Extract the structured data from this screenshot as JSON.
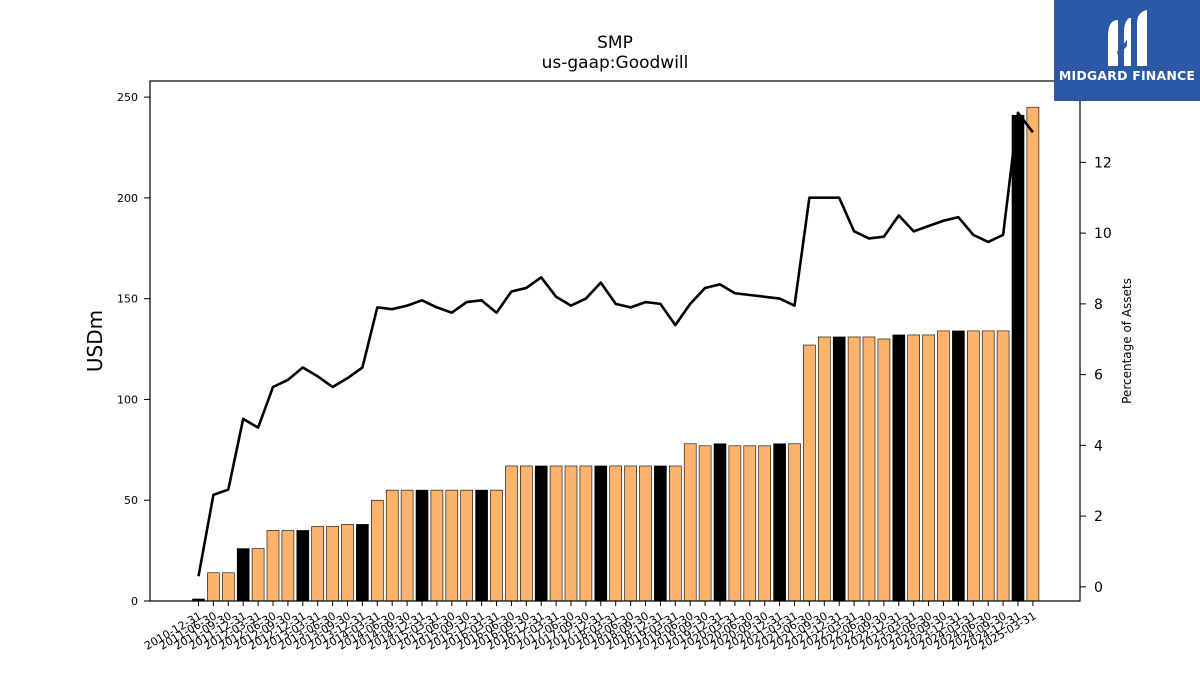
{
  "title": "SMP",
  "subtitle": "us-gaap:Goodwill",
  "logo": {
    "text": "MIDGARD FINANCE",
    "icon": "midgard-m-logo-icon"
  },
  "colors": {
    "bar": "#fdb36b",
    "bar_year_end": "#000000",
    "line": "#000000",
    "logo_bg": "#2b59a8"
  },
  "chart_data": {
    "type": "bar",
    "title": "SMP",
    "subtitle": "us-gaap:Goodwill",
    "ylabel": "USDm",
    "y2label": "Percentage of Assets",
    "ylim": [
      0,
      258
    ],
    "y2lim": [
      -0.4,
      14.3
    ],
    "yticks": [
      0,
      50,
      100,
      150,
      200,
      250
    ],
    "y2ticks": [
      0,
      2,
      4,
      6,
      8,
      10,
      12
    ],
    "categories": [
      "2010-12-31",
      "2011-06-30",
      "2011-09-30",
      "2011-12-31",
      "2012-03-31",
      "2012-06-30",
      "2012-09-30",
      "2012-12-31",
      "2013-03-31",
      "2013-06-30",
      "2013-09-30",
      "2013-12-31",
      "2014-03-31",
      "2014-06-30",
      "2014-09-30",
      "2014-12-31",
      "2015-03-31",
      "2015-06-30",
      "2015-09-30",
      "2015-12-31",
      "2016-03-31",
      "2016-06-30",
      "2016-09-30",
      "2016-12-31",
      "2017-03-31",
      "2017-06-30",
      "2017-09-30",
      "2017-12-31",
      "2018-03-31",
      "2018-06-30",
      "2018-09-30",
      "2018-12-31",
      "2019-03-31",
      "2019-06-30",
      "2019-09-30",
      "2019-12-31",
      "2020-03-31",
      "2020-06-30",
      "2020-09-30",
      "2020-12-31",
      "2021-03-31",
      "2021-06-30",
      "2021-09-30",
      "2021-12-31",
      "2022-03-31",
      "2022-06-30",
      "2022-09-30",
      "2022-12-31",
      "2023-03-31",
      "2023-06-30",
      "2023-09-30",
      "2023-12-31",
      "2024-03-31",
      "2024-06-30",
      "2024-09-30",
      "2024-12-31",
      "2025-03-31"
    ],
    "series": [
      {
        "type": "bar",
        "axis": "left",
        "values": [
          1,
          14,
          14,
          26,
          26,
          35,
          35,
          35,
          37,
          37,
          38,
          38,
          50,
          55,
          55,
          55,
          55,
          55,
          55,
          55,
          55,
          67,
          67,
          67,
          67,
          67,
          67,
          67,
          67,
          67,
          67,
          67,
          67,
          78,
          77,
          78,
          77,
          77,
          77,
          78,
          78,
          127,
          131,
          131,
          131,
          131,
          130,
          132,
          132,
          132,
          134,
          134,
          134,
          134,
          134,
          241,
          245
        ]
      },
      {
        "type": "line",
        "axis": "right",
        "values": [
          0.3,
          2.6,
          2.75,
          4.75,
          4.5,
          5.65,
          5.85,
          6.2,
          5.95,
          5.65,
          5.9,
          6.2,
          7.9,
          7.85,
          7.95,
          8.1,
          7.9,
          7.75,
          8.05,
          8.1,
          7.75,
          8.35,
          8.45,
          8.75,
          8.2,
          7.95,
          8.15,
          8.6,
          8.0,
          7.9,
          8.05,
          8.0,
          7.4,
          8.0,
          8.45,
          8.55,
          8.3,
          8.25,
          8.2,
          8.15,
          7.95,
          11.0,
          11.0,
          11.0,
          10.05,
          9.85,
          9.9,
          10.5,
          10.05,
          10.2,
          10.35,
          10.45,
          9.95,
          9.75,
          9.95,
          13.4,
          12.85
        ]
      }
    ]
  }
}
